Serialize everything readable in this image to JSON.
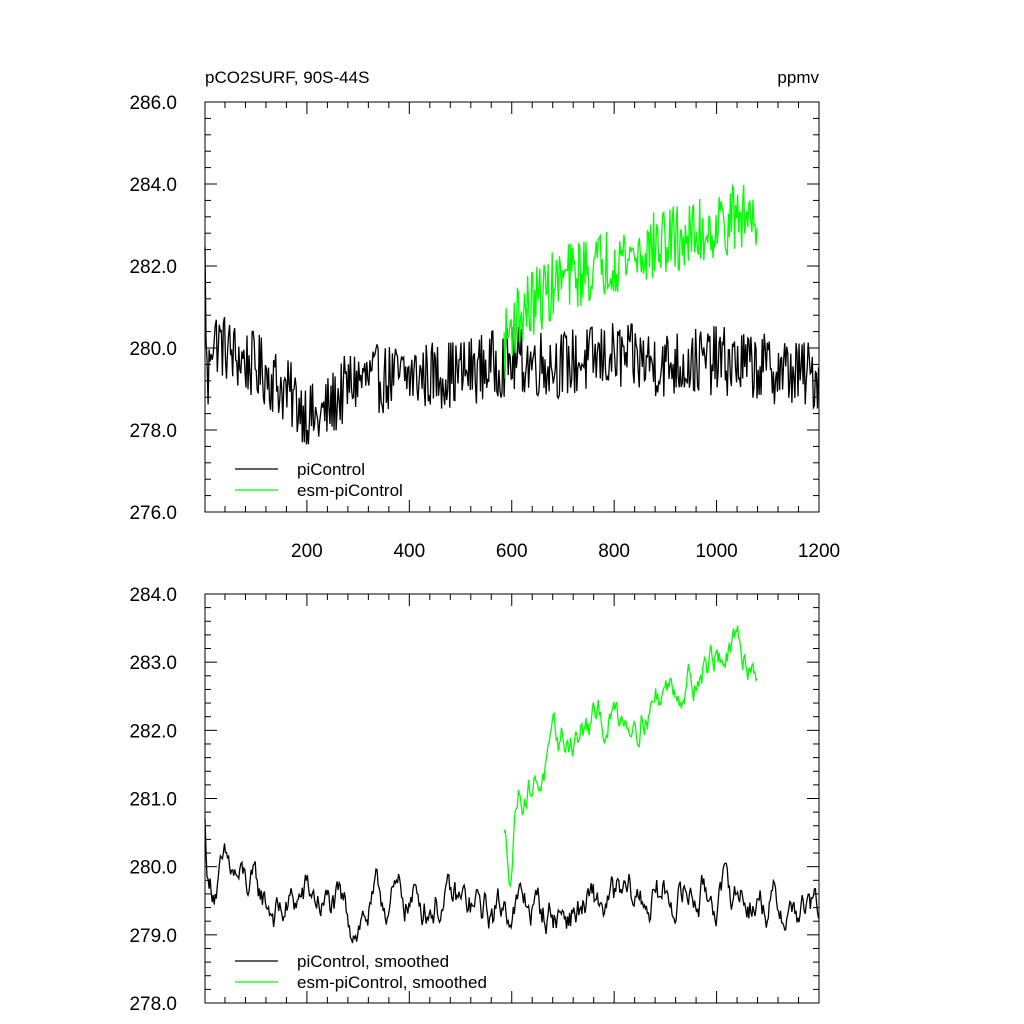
{
  "chart_data": [
    {
      "type": "line",
      "title": "pCO2SURF, 90S-44S",
      "units": "ppmv",
      "xlim": [
        1,
        1200
      ],
      "ylim": [
        276.0,
        286.0
      ],
      "x_ticks": [
        200,
        400,
        600,
        800,
        1000,
        1200
      ],
      "x_tick_labels": [
        "200",
        "400",
        "600",
        "800",
        "1000",
        "1200"
      ],
      "y_ticks": [
        276,
        278,
        280,
        282,
        284,
        286
      ],
      "y_tick_labels": [
        "276.0",
        "278.0",
        "280.0",
        "282.0",
        "284.0",
        "286.0"
      ],
      "legend": [
        "piControl",
        "esm-piControl"
      ],
      "series": [
        {
          "name": "piControl",
          "color": "#000000",
          "x_range": [
            1,
            1200
          ],
          "mean": 279.5,
          "noise": 0.85,
          "anchors": [
            [
              1,
              282.1
            ],
            [
              6,
              278.6
            ],
            [
              12,
              280.3
            ],
            [
              60,
              279.8
            ],
            [
              120,
              279.4
            ],
            [
              220,
              278.2
            ],
            [
              290,
              279.2
            ],
            [
              400,
              279.3
            ],
            [
              500,
              279.4
            ],
            [
              600,
              279.7
            ],
            [
              700,
              279.6
            ],
            [
              800,
              279.8
            ],
            [
              900,
              279.6
            ],
            [
              1000,
              279.7
            ],
            [
              1100,
              279.5
            ],
            [
              1200,
              279.3
            ]
          ]
        },
        {
          "name": "esm-piControl",
          "color": "#00ff00",
          "x_range": [
            585,
            1080
          ],
          "noise": 0.85,
          "anchors": [
            [
              585,
              280.0
            ],
            [
              600,
              280.6
            ],
            [
              650,
              281.2
            ],
            [
              700,
              281.7
            ],
            [
              750,
              281.9
            ],
            [
              800,
              282.2
            ],
            [
              850,
              282.3
            ],
            [
              900,
              282.6
            ],
            [
              950,
              282.7
            ],
            [
              1000,
              283.0
            ],
            [
              1050,
              283.2
            ],
            [
              1080,
              283.3
            ]
          ]
        }
      ]
    },
    {
      "type": "line",
      "title": "",
      "xlim": [
        1,
        1200
      ],
      "ylim": [
        278.0,
        284.0
      ],
      "x_ticks": [
        200,
        400,
        600,
        800,
        1000,
        1200
      ],
      "y_ticks": [
        278,
        279,
        280,
        281,
        282,
        283,
        284
      ],
      "y_tick_labels": [
        "278.0",
        "279.0",
        "280.0",
        "281.0",
        "282.0",
        "283.0",
        "284.0"
      ],
      "legend": [
        "piControl, smoothed",
        "esm-piControl, smoothed"
      ],
      "series": [
        {
          "name": "piControl, smoothed",
          "color": "#000000",
          "x_range": [
            1,
            1200
          ],
          "noise": 0.45,
          "anchors": [
            [
              1,
              280.6
            ],
            [
              8,
              279.7
            ],
            [
              40,
              279.9
            ],
            [
              100,
              279.6
            ],
            [
              150,
              279.3
            ],
            [
              200,
              279.6
            ],
            [
              290,
              279.2
            ],
            [
              350,
              279.5
            ],
            [
              450,
              279.5
            ],
            [
              560,
              279.3
            ],
            [
              600,
              279.5
            ],
            [
              680,
              279.3
            ],
            [
              760,
              279.4
            ],
            [
              850,
              279.5
            ],
            [
              950,
              279.6
            ],
            [
              1050,
              279.6
            ],
            [
              1120,
              279.4
            ],
            [
              1200,
              279.3
            ]
          ]
        },
        {
          "name": "esm-piControl, smoothed",
          "color": "#00ff00",
          "x_range": [
            585,
            1080
          ],
          "noise": 0.42,
          "anchors": [
            [
              585,
              280.4
            ],
            [
              598,
              280.0
            ],
            [
              610,
              281.1
            ],
            [
              650,
              281.3
            ],
            [
              700,
              281.8
            ],
            [
              750,
              282.0
            ],
            [
              800,
              282.2
            ],
            [
              850,
              282.3
            ],
            [
              900,
              282.6
            ],
            [
              950,
              282.8
            ],
            [
              1000,
              283.1
            ],
            [
              1050,
              283.1
            ],
            [
              1080,
              283.0
            ]
          ]
        }
      ]
    }
  ]
}
